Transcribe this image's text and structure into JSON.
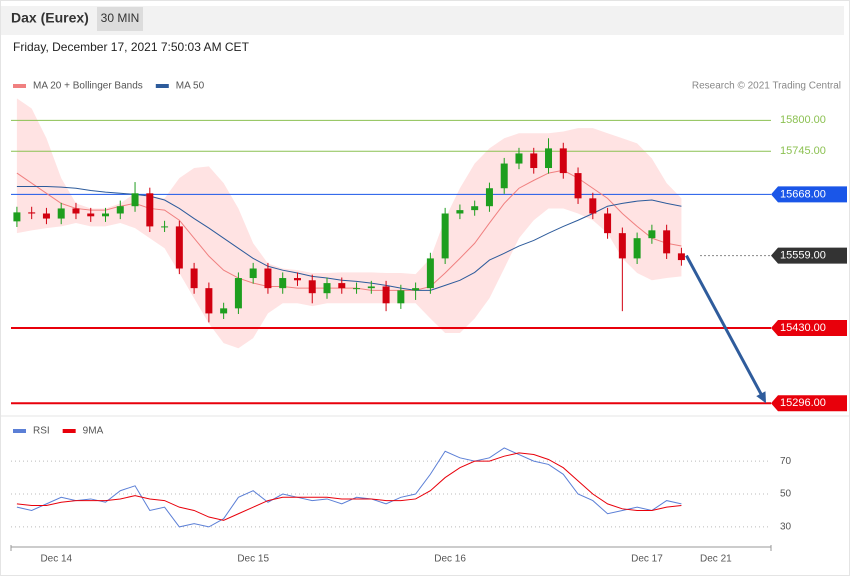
{
  "header": {
    "title": "Dax (Eurex)",
    "timeframe": "30 MIN",
    "timestamp": "Friday, December 17, 2021 7:50:03 AM CET"
  },
  "chart_data": [
    {
      "type": "candlestick",
      "credit": "Research © 2021 Trading Central",
      "x": [
        -0.2,
        -0.125,
        -0.05,
        0.025,
        0.1,
        0.175,
        0.25,
        0.325,
        0.4,
        0.475,
        0.55,
        0.625,
        0.7,
        0.775,
        0.85,
        0.925,
        1.0,
        1.075,
        1.15,
        1.225,
        1.3,
        1.375,
        1.45,
        1.525,
        1.6,
        1.675,
        1.75,
        1.825,
        1.9,
        1.975,
        2.05,
        2.125,
        2.2,
        2.275,
        2.35,
        2.425,
        2.5,
        2.575,
        2.65,
        2.725,
        2.8,
        2.875,
        2.95,
        3.025,
        3.1,
        3.175
      ],
      "open": [
        15620,
        15636,
        15634,
        15625,
        15643,
        15634,
        15629,
        15634,
        15647,
        15670,
        15611,
        15611,
        15536,
        15501,
        15456,
        15465,
        15519,
        15536,
        15501,
        15519,
        15515,
        15492,
        15510,
        15501,
        15501,
        15504,
        15474,
        15497,
        15501,
        15554,
        15634,
        15640,
        15647,
        15679,
        15723,
        15741,
        15715,
        15750,
        15706,
        15661,
        15634,
        15599,
        15554,
        15590,
        15604,
        15563
      ],
      "high": [
        15646,
        15646,
        15644,
        15653,
        15653,
        15644,
        15644,
        15657,
        15690,
        15680,
        15621,
        15621,
        15546,
        15511,
        15475,
        15529,
        15546,
        15546,
        15529,
        15529,
        15525,
        15520,
        15520,
        15511,
        15514,
        15514,
        15507,
        15511,
        15564,
        15644,
        15650,
        15657,
        15689,
        15733,
        15751,
        15751,
        15768,
        15760,
        15716,
        15671,
        15644,
        15609,
        15600,
        15614,
        15614,
        15573
      ],
      "low": [
        15610,
        15624,
        15615,
        15615,
        15624,
        15619,
        15619,
        15624,
        15637,
        15601,
        15601,
        15526,
        15491,
        15440,
        15446,
        15455,
        15509,
        15491,
        15491,
        15505,
        15474,
        15482,
        15491,
        15491,
        15491,
        15460,
        15464,
        15480,
        15491,
        15544,
        15624,
        15630,
        15637,
        15669,
        15713,
        15705,
        15705,
        15696,
        15651,
        15624,
        15589,
        15460,
        15544,
        15580,
        15553,
        15541
      ],
      "close": [
        15636,
        15634,
        15625,
        15643,
        15634,
        15629,
        15634,
        15647,
        15670,
        15611,
        15611,
        15536,
        15501,
        15456,
        15465,
        15519,
        15536,
        15501,
        15519,
        15515,
        15492,
        15510,
        15501,
        15501,
        15504,
        15474,
        15497,
        15501,
        15554,
        15634,
        15640,
        15647,
        15679,
        15723,
        15741,
        15715,
        15750,
        15706,
        15661,
        15634,
        15599,
        15554,
        15590,
        15604,
        15563,
        15551
      ],
      "up_color": "#1e9e1e",
      "down_color": "#d10010",
      "series": [
        {
          "name": "MA 20 + Bollinger Bands",
          "color": "#f08080",
          "band_color": "#ffe3e3",
          "values": [
            15706,
            15688,
            15670,
            15652,
            15643,
            15640,
            15640,
            15647,
            15652,
            15643,
            15640,
            15622,
            15590,
            15558,
            15533,
            15519,
            15510,
            15504,
            15504,
            15501,
            15501,
            15501,
            15501,
            15501,
            15497,
            15497,
            15497,
            15497,
            15504,
            15528,
            15554,
            15581,
            15617,
            15652,
            15679,
            15693,
            15706,
            15711,
            15697,
            15679,
            15661,
            15634,
            15611,
            15590,
            15581,
            15576
          ],
          "upper": [
            15839,
            15821,
            15768,
            15697,
            15652,
            15643,
            15643,
            15652,
            15670,
            15665,
            15661,
            15697,
            15715,
            15718,
            15688,
            15643,
            15581,
            15545,
            15536,
            15533,
            15528,
            15528,
            15529,
            15529,
            15529,
            15528,
            15528,
            15526,
            15554,
            15625,
            15679,
            15723,
            15750,
            15768,
            15777,
            15777,
            15777,
            15780,
            15786,
            15786,
            15777,
            15768,
            15759,
            15732,
            15688,
            15661
          ],
          "lower": [
            15599,
            15604,
            15608,
            15611,
            15617,
            15611,
            15611,
            15617,
            15608,
            15590,
            15572,
            15528,
            15483,
            15438,
            15403,
            15394,
            15412,
            15456,
            15474,
            15474,
            15469,
            15474,
            15474,
            15474,
            15474,
            15474,
            15474,
            15474,
            15447,
            15421,
            15421,
            15447,
            15483,
            15536,
            15590,
            15622,
            15643,
            15643,
            15634,
            15622,
            15599,
            15554,
            15528,
            15515,
            15519,
            15522
          ]
        },
        {
          "name": "MA 50",
          "color": "#2d5b9b",
          "values": [
            15682,
            15682,
            15682,
            15681,
            15679,
            15675,
            15672,
            15670,
            15668,
            15665,
            15658,
            15643,
            15625,
            15608,
            15590,
            15572,
            15554,
            15540,
            15533,
            15528,
            15522,
            15519,
            15515,
            15513,
            15510,
            15506,
            15501,
            15497,
            15497,
            15506,
            15515,
            15529,
            15551,
            15563,
            15576,
            15586,
            15599,
            15611,
            15622,
            15634,
            15647,
            15652,
            15656,
            15658,
            15652,
            15647
          ]
        }
      ],
      "levels": [
        {
          "value": 15800,
          "label": "15800.00",
          "color": "#8cc152",
          "box": false
        },
        {
          "value": 15745,
          "label": "15745.00",
          "color": "#8cc152",
          "box": false
        },
        {
          "value": 15668,
          "label": "15668.00",
          "color": "#1a56e8",
          "box": true
        },
        {
          "value": 15559,
          "label": "15559.00",
          "color": "#333333",
          "box": true
        },
        {
          "value": 15430,
          "label": "15430.00",
          "color": "#e8000b",
          "box": true
        },
        {
          "value": 15296,
          "label": "15296.00",
          "color": "#e8000b",
          "box": true
        }
      ],
      "arrow_color": "#2f5c9c",
      "xlim": [
        -0.23,
        3.63
      ],
      "ylim": [
        15275,
        15895
      ]
    },
    {
      "type": "line",
      "x": [
        -0.2,
        -0.125,
        -0.05,
        0.025,
        0.1,
        0.175,
        0.25,
        0.325,
        0.4,
        0.475,
        0.55,
        0.625,
        0.7,
        0.775,
        0.85,
        0.925,
        1.0,
        1.075,
        1.15,
        1.225,
        1.3,
        1.375,
        1.45,
        1.525,
        1.6,
        1.675,
        1.75,
        1.825,
        1.9,
        1.975,
        2.05,
        2.125,
        2.2,
        2.275,
        2.35,
        2.425,
        2.5,
        2.575,
        2.65,
        2.725,
        2.8,
        2.875,
        2.95,
        3.025,
        3.1,
        3.175
      ],
      "series": [
        {
          "name": "RSI",
          "color": "#5b7fd6",
          "values": [
            42,
            40,
            44,
            48,
            46,
            47,
            45,
            52,
            55,
            40,
            42,
            30,
            32,
            30,
            35,
            48,
            52,
            45,
            50,
            48,
            46,
            47,
            44,
            48,
            47,
            44,
            48,
            50,
            62,
            76,
            72,
            70,
            72,
            78,
            74,
            70,
            68,
            62,
            50,
            46,
            38,
            40,
            42,
            40,
            46,
            44
          ]
        },
        {
          "name": "9MA",
          "color": "#e8000b",
          "values": [
            44,
            43,
            43,
            45,
            46,
            46,
            46,
            47,
            49,
            47,
            46,
            42,
            40,
            36,
            34,
            38,
            42,
            46,
            48,
            48,
            48,
            48,
            47,
            47,
            47,
            46,
            46,
            47,
            52,
            60,
            66,
            70,
            70,
            73,
            75,
            74,
            71,
            66,
            58,
            50,
            44,
            41,
            40,
            40,
            42,
            43
          ]
        }
      ],
      "xlim": [
        -0.23,
        3.63
      ],
      "ylim": [
        19,
        95
      ],
      "yticks": [
        30,
        50,
        70
      ],
      "xticks": [
        {
          "value": 0,
          "label": "Dec 14"
        },
        {
          "value": 1,
          "label": "Dec 15"
        },
        {
          "value": 2,
          "label": "Dec 16"
        },
        {
          "value": 3,
          "label": "Dec 17"
        },
        {
          "value": 3.35,
          "label": "Dec 21"
        }
      ]
    }
  ]
}
